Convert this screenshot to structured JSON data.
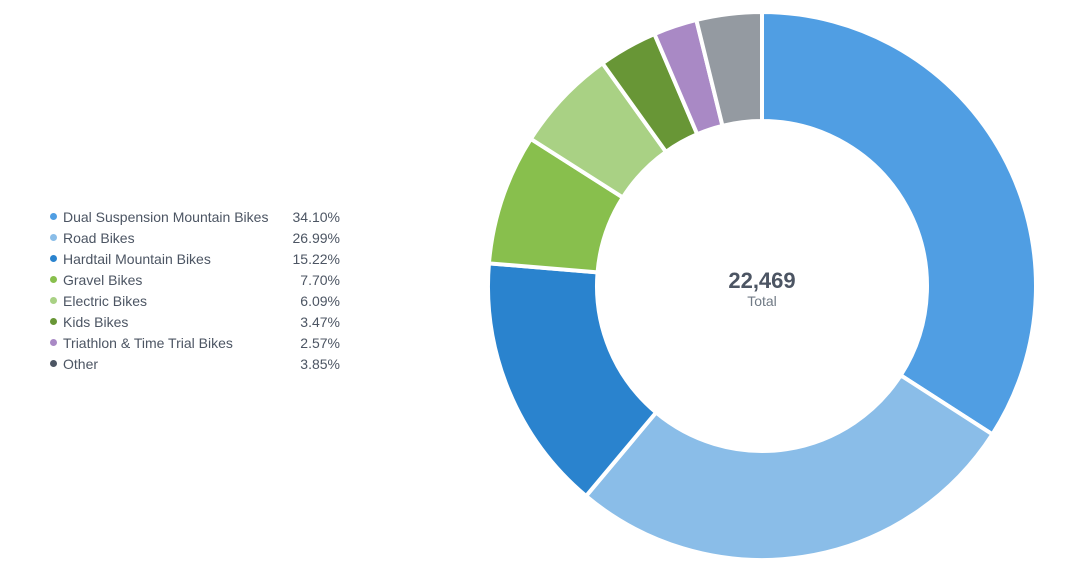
{
  "chart_data": {
    "type": "pie",
    "donut": true,
    "center": {
      "value": "22,469",
      "label": "Total"
    },
    "legend_position": "left",
    "slices": [
      {
        "name": "Dual Suspension Mountain Bikes",
        "value": 34.1,
        "label": "34.10%",
        "color": "#509ee3"
      },
      {
        "name": "Road Bikes",
        "value": 26.99,
        "label": "26.99%",
        "color": "#8abde8"
      },
      {
        "name": "Hardtail Mountain Bikes",
        "value": 15.22,
        "label": "15.22%",
        "color": "#2a83ce"
      },
      {
        "name": "Gravel Bikes",
        "value": 7.7,
        "label": "7.70%",
        "color": "#88bf4d"
      },
      {
        "name": "Electric Bikes",
        "value": 6.09,
        "label": "6.09%",
        "color": "#a9d184"
      },
      {
        "name": "Kids Bikes",
        "value": 3.47,
        "label": "3.47%",
        "color": "#689636"
      },
      {
        "name": "Triathlon & Time Trial Bikes",
        "value": 2.57,
        "label": "2.57%",
        "color": "#a989c5"
      },
      {
        "name": "Other",
        "value": 3.85,
        "label": "3.85%",
        "color": "#949aa1",
        "legend_color": "#4c5563"
      }
    ]
  }
}
